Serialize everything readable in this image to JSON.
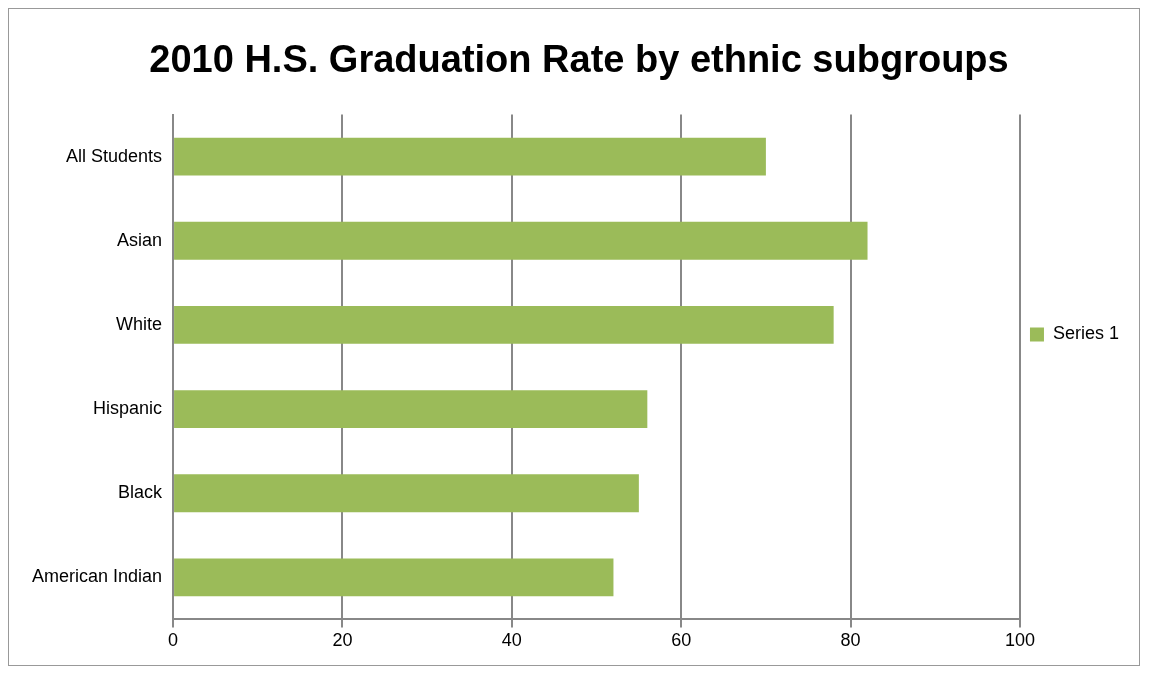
{
  "chart_data": {
    "type": "bar",
    "orientation": "horizontal",
    "title": "2010 H.S. Graduation Rate by ethnic subgroups",
    "categories": [
      "All Students",
      "Asian",
      "White",
      "Hispanic",
      "Black",
      "American Indian"
    ],
    "series": [
      {
        "name": "Series 1",
        "color": "#9bbb59",
        "values": [
          70,
          82,
          78,
          56,
          55,
          52
        ]
      }
    ],
    "xlim": [
      0,
      100
    ],
    "xticks": [
      0,
      20,
      40,
      60,
      80,
      100
    ],
    "grid": "x",
    "legend": "right"
  }
}
